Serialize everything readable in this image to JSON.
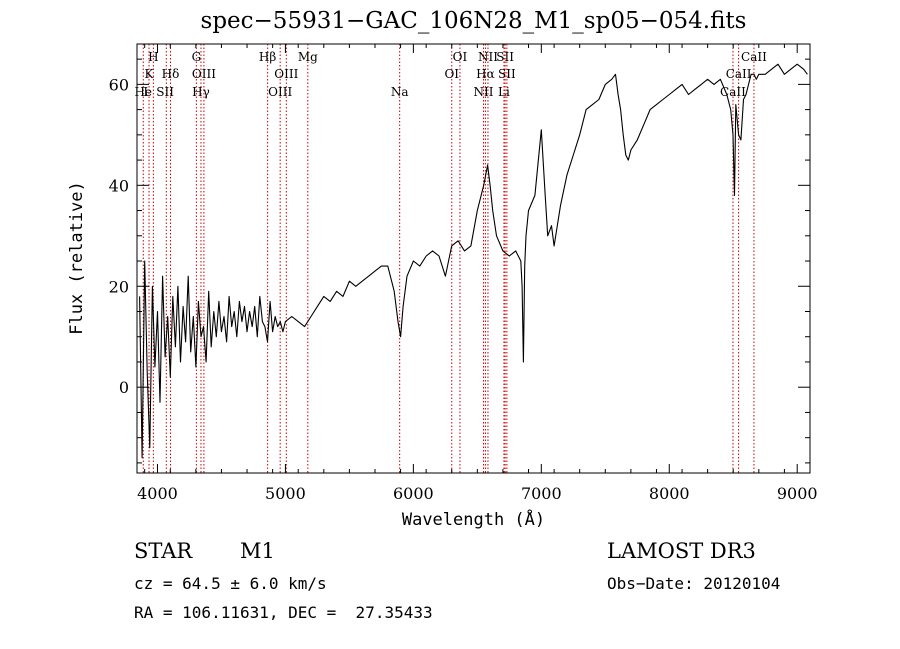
{
  "chart_data": {
    "type": "line",
    "title": "spec−55931−GAC_106N28_M1_sp05−054.fits",
    "xlabel": "Wavelength (Å)",
    "ylabel": "Flux (relative)",
    "xlim": [
      3840,
      9100
    ],
    "ylim": [
      -17,
      68
    ],
    "xticks": [
      4000,
      5000,
      6000,
      7000,
      8000,
      9000
    ],
    "yticks": [
      0,
      20,
      40,
      60
    ],
    "grid": false,
    "line_color": "#000000",
    "marker_color": "#cc0000",
    "spectrum": {
      "x": [
        3860,
        3880,
        3900,
        3920,
        3940,
        3960,
        3980,
        4000,
        4020,
        4040,
        4060,
        4080,
        4100,
        4120,
        4140,
        4160,
        4180,
        4200,
        4220,
        4240,
        4260,
        4280,
        4300,
        4320,
        4340,
        4360,
        4380,
        4400,
        4420,
        4440,
        4460,
        4480,
        4500,
        4520,
        4540,
        4560,
        4580,
        4600,
        4620,
        4640,
        4660,
        4680,
        4700,
        4720,
        4740,
        4760,
        4780,
        4800,
        4820,
        4840,
        4860,
        4880,
        4900,
        4920,
        4940,
        4960,
        4980,
        5000,
        5050,
        5100,
        5150,
        5200,
        5250,
        5300,
        5350,
        5400,
        5450,
        5500,
        5550,
        5600,
        5650,
        5700,
        5750,
        5800,
        5850,
        5880,
        5900,
        5920,
        5950,
        6000,
        6050,
        6100,
        6150,
        6200,
        6250,
        6300,
        6350,
        6400,
        6450,
        6500,
        6550,
        6580,
        6600,
        6620,
        6650,
        6700,
        6750,
        6800,
        6840,
        6850,
        6860,
        6870,
        6880,
        6900,
        6950,
        7000,
        7030,
        7050,
        7080,
        7100,
        7150,
        7200,
        7250,
        7300,
        7350,
        7400,
        7450,
        7500,
        7550,
        7580,
        7600,
        7620,
        7640,
        7660,
        7680,
        7700,
        7750,
        7800,
        7850,
        7900,
        7950,
        8000,
        8050,
        8100,
        8150,
        8200,
        8250,
        8300,
        8350,
        8400,
        8450,
        8480,
        8498,
        8510,
        8520,
        8542,
        8560,
        8580,
        8600,
        8640,
        8662,
        8680,
        8700,
        8750,
        8800,
        8850,
        8900,
        8950,
        9000,
        9050,
        9080
      ],
      "y": [
        18,
        -14,
        25,
        3,
        -12,
        20,
        4,
        15,
        -3,
        22,
        6,
        14,
        2,
        18,
        8,
        20,
        5,
        16,
        9,
        22,
        7,
        14,
        4,
        17,
        10,
        12,
        5,
        19,
        8,
        15,
        10,
        17,
        11,
        14,
        9,
        18,
        12,
        15,
        10,
        17,
        13,
        16,
        11,
        15,
        12,
        16,
        10,
        18,
        13,
        12,
        9,
        17,
        11,
        14,
        12,
        13,
        11,
        13,
        14,
        13,
        12,
        14,
        16,
        18,
        17,
        19,
        18,
        21,
        20,
        21,
        22,
        23,
        24,
        24,
        19,
        13,
        10,
        16,
        22,
        25,
        24,
        26,
        27,
        26,
        22,
        28,
        29,
        27,
        28,
        35,
        40,
        44,
        40,
        35,
        30,
        27,
        26,
        27,
        25,
        20,
        5,
        24,
        30,
        35,
        38,
        51,
        38,
        30,
        32,
        28,
        36,
        42,
        46,
        50,
        55,
        56,
        57,
        60,
        61,
        62,
        58,
        55,
        50,
        46,
        45,
        47,
        49,
        52,
        55,
        56,
        57,
        58,
        59,
        60,
        58,
        59,
        60,
        61,
        60,
        61,
        58,
        55,
        50,
        38,
        56,
        50,
        49,
        57,
        58,
        62,
        62,
        61,
        62,
        62,
        63,
        64,
        62,
        63,
        64,
        63,
        62
      ]
    },
    "lines": [
      {
        "name": "He",
        "wl": 3889
      },
      {
        "name": "K",
        "wl": 3934
      },
      {
        "name": "H",
        "wl": 3968
      },
      {
        "name": "SII",
        "wl": 4069
      },
      {
        "name": "Hδ",
        "wl": 4102
      },
      {
        "name": "G",
        "wl": 4304
      },
      {
        "name": "Hγ",
        "wl": 4340
      },
      {
        "name": "OIII",
        "wl": 4363
      },
      {
        "name": "Hβ",
        "wl": 4861
      },
      {
        "name": "OIII",
        "wl": 4959
      },
      {
        "name": "OIII",
        "wl": 5007
      },
      {
        "name": "Mg",
        "wl": 5175
      },
      {
        "name": "Na",
        "wl": 5893
      },
      {
        "name": "OI",
        "wl": 6300
      },
      {
        "name": "OI",
        "wl": 6364
      },
      {
        "name": "NII",
        "wl": 6548
      },
      {
        "name": "Hα",
        "wl": 6563
      },
      {
        "name": "NII",
        "wl": 6583
      },
      {
        "name": "Li",
        "wl": 6708
      },
      {
        "name": "SII",
        "wl": 6717
      },
      {
        "name": "SII",
        "wl": 6731
      },
      {
        "name": "CaII",
        "wl": 8498
      },
      {
        "name": "CaII",
        "wl": 8542
      },
      {
        "name": "CaII",
        "wl": 8662
      }
    ],
    "line_labels": [
      {
        "text": "H",
        "wl": 3968,
        "row": 0
      },
      {
        "text": "K",
        "wl": 3934,
        "row": 1
      },
      {
        "text": "He",
        "wl": 3889,
        "row": 2
      },
      {
        "text": "I",
        "wl": 3908,
        "row": 2
      },
      {
        "text": "Hδ",
        "wl": 4102,
        "row": 1
      },
      {
        "text": "SII",
        "wl": 4060,
        "row": 2
      },
      {
        "text": "G",
        "wl": 4304,
        "row": 0
      },
      {
        "text": "OIII",
        "wl": 4363,
        "row": 1
      },
      {
        "text": "Hγ",
        "wl": 4340,
        "row": 2
      },
      {
        "text": "Hβ",
        "wl": 4861,
        "row": 0
      },
      {
        "text": "OIII",
        "wl": 5007,
        "row": 1
      },
      {
        "text": "OIII",
        "wl": 4959,
        "row": 2
      },
      {
        "text": "Mg",
        "wl": 5175,
        "row": 0
      },
      {
        "text": "Na",
        "wl": 5893,
        "row": 2
      },
      {
        "text": "OI",
        "wl": 6364,
        "row": 0
      },
      {
        "text": "OI",
        "wl": 6300,
        "row": 1
      },
      {
        "text": "NII",
        "wl": 6583,
        "row": 0
      },
      {
        "text": "SII",
        "wl": 6717,
        "row": 0
      },
      {
        "text": "Hα",
        "wl": 6563,
        "row": 1
      },
      {
        "text": "SII",
        "wl": 6731,
        "row": 1
      },
      {
        "text": "NII",
        "wl": 6548,
        "row": 2
      },
      {
        "text": "Li",
        "wl": 6708,
        "row": 2
      },
      {
        "text": "CaII",
        "wl": 8662,
        "row": 0
      },
      {
        "text": "CaII",
        "wl": 8542,
        "row": 1
      },
      {
        "text": "CaII",
        "wl": 8498,
        "row": 2
      }
    ]
  },
  "info": {
    "object_class": "STAR",
    "subclass": "M1",
    "survey": "LAMOST DR3",
    "cz_text": "cz = 64.5 ± 6.0 km/s",
    "obs_date_text": "Obs−Date: 20120104",
    "coords_text": "RA = 106.11631, DEC =  27.35433"
  }
}
